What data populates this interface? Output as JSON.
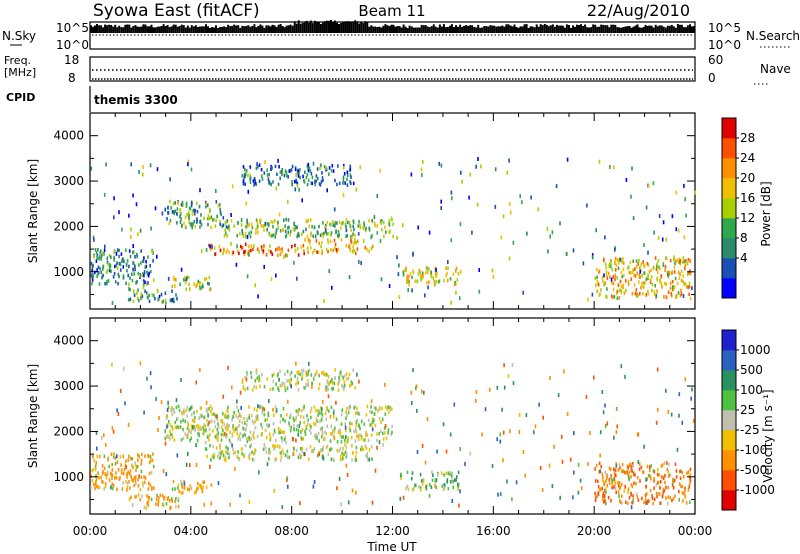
{
  "header": {
    "station": "Syowa East (fitACF)",
    "beam": "Beam 11",
    "date": "22/Aug/2010"
  },
  "top_panels": {
    "nsky_label": "N.Sky",
    "nsearch_label": "N.Search",
    "nsky_ticks": [
      "10^5",
      "10^0"
    ],
    "nsearch_ticks": [
      "10^5",
      "10^0"
    ],
    "freq_label_1": "Freq.",
    "freq_label_2": "[MHz]",
    "freq_ticks": [
      "18",
      "8"
    ],
    "nave_label": "Nave",
    "nave_ticks": [
      "60",
      "0"
    ],
    "cpid_label": "CPID",
    "cpid_value": "themis 3300"
  },
  "colorbars": {
    "power": {
      "label": "Power [dB]",
      "ticks": [
        "28",
        "24",
        "20",
        "16",
        "12",
        "8",
        "4"
      ],
      "colors": [
        "#0000ff",
        "#1a4fb5",
        "#2a8a6a",
        "#2ea84a",
        "#a8d000",
        "#f0c000",
        "#ff9000",
        "#ff5000",
        "#e00000"
      ]
    },
    "velocity": {
      "label": "Velocity [m s⁻¹]",
      "ticks": [
        "1000",
        "500",
        "100",
        "25",
        "-25",
        "-100",
        "-500",
        "-1000"
      ],
      "colors": [
        "#2020d0",
        "#2a60c0",
        "#2a9060",
        "#50c040",
        "#c0c0b0",
        "#f0c000",
        "#ff9000",
        "#ff5000",
        "#e00000"
      ]
    }
  },
  "chart_data": [
    {
      "type": "heatmap",
      "name": "power",
      "ylabel": "Slant Range [km]",
      "xlabel": "",
      "ylim": [
        180,
        4500
      ],
      "xlim_hours": [
        0,
        24
      ],
      "yticks": [
        "1000",
        "2000",
        "3000",
        "4000"
      ],
      "yticks_values": [
        1000,
        2000,
        3000,
        4000
      ],
      "colorbar_label": "Power [dB]",
      "color_range_db": [
        0,
        32
      ],
      "regions_hours_km": [
        {
          "t": [
            4.5,
            8.6
          ],
          "r": [
            1350,
            1600
          ],
          "power": 24
        },
        {
          "t": [
            8.6,
            11.2
          ],
          "r": [
            1400,
            1700
          ],
          "power": 22
        },
        {
          "t": [
            3.0,
            5.3
          ],
          "r": [
            1950,
            2550
          ],
          "power": 12
        },
        {
          "t": [
            5.3,
            12.0
          ],
          "r": [
            1750,
            2150
          ],
          "power": 14
        },
        {
          "t": [
            6.0,
            10.5
          ],
          "r": [
            2900,
            3350
          ],
          "power": 8
        },
        {
          "t": [
            3.2,
            4.8
          ],
          "r": [
            600,
            900
          ],
          "power": 16
        },
        {
          "t": [
            1.5,
            3.5
          ],
          "r": [
            300,
            600
          ],
          "power": 10
        },
        {
          "t": [
            12.3,
            14.6
          ],
          "r": [
            700,
            1100
          ],
          "power": 18
        },
        {
          "t": [
            20.0,
            23.8
          ],
          "r": [
            400,
            1300
          ],
          "power": 20
        },
        {
          "t": [
            0.0,
            2.5
          ],
          "r": [
            700,
            1500
          ],
          "power": 8
        }
      ]
    },
    {
      "type": "heatmap",
      "name": "velocity",
      "ylabel": "Slant Range [km]",
      "xlabel": "Time UT",
      "ylim": [
        180,
        4500
      ],
      "xlim_hours": [
        0,
        24
      ],
      "yticks": [
        "1000",
        "2000",
        "3000",
        "4000"
      ],
      "yticks_values": [
        1000,
        2000,
        3000,
        4000
      ],
      "xticks": [
        "00:00",
        "04:00",
        "08:00",
        "12:00",
        "16:00",
        "20:00",
        "00:00"
      ],
      "xticks_values": [
        0,
        4,
        8,
        12,
        16,
        20,
        24
      ],
      "colorbar_label": "Velocity [m s⁻¹]",
      "color_range_ms": [
        -1000,
        1000
      ],
      "regions_hours_km": [
        {
          "t": [
            4.5,
            11.2
          ],
          "r": [
            1350,
            1700
          ],
          "velocity": 0
        },
        {
          "t": [
            3.0,
            12.0
          ],
          "r": [
            1750,
            2550
          ],
          "velocity": 0
        },
        {
          "t": [
            6.0,
            10.5
          ],
          "r": [
            2900,
            3350
          ],
          "velocity": 0
        },
        {
          "t": [
            3.2,
            4.8
          ],
          "r": [
            600,
            900
          ],
          "velocity": -150
        },
        {
          "t": [
            1.5,
            3.5
          ],
          "r": [
            300,
            600
          ],
          "velocity": -150
        },
        {
          "t": [
            12.3,
            14.6
          ],
          "r": [
            700,
            1100
          ],
          "velocity": 50
        },
        {
          "t": [
            20.0,
            23.8
          ],
          "r": [
            400,
            1300
          ],
          "velocity": -400
        },
        {
          "t": [
            0.0,
            2.5
          ],
          "r": [
            700,
            1500
          ],
          "velocity": -200
        }
      ]
    }
  ]
}
